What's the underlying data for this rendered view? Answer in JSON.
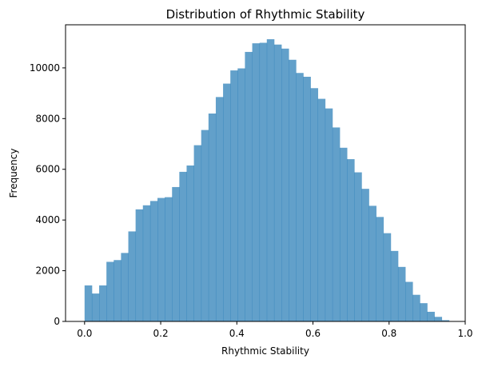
{
  "chart_data": {
    "type": "histogram",
    "title": "Distribution of Rhythmic Stability",
    "xlabel": "Rhythmic Stability",
    "ylabel": "Frequency",
    "xlim": [
      -0.05,
      1.0
    ],
    "ylim": [
      0,
      11700
    ],
    "x_ticks": [
      0.0,
      0.2,
      0.4,
      0.6,
      0.8,
      1.0
    ],
    "x_tick_labels": [
      "0.0",
      "0.2",
      "0.4",
      "0.6",
      "0.8",
      "1.0"
    ],
    "y_ticks": [
      0,
      2000,
      4000,
      6000,
      8000,
      10000
    ],
    "y_tick_labels": [
      "0",
      "2000",
      "4000",
      "6000",
      "8000",
      "10000"
    ],
    "bar_color": "#1f77b4",
    "bar_opacity": 0.7,
    "grid": false,
    "legend": false,
    "bin_start": 0.0,
    "bin_width": 0.01915,
    "values": [
      1420,
      1100,
      1420,
      2350,
      2420,
      2700,
      3550,
      4420,
      4580,
      4750,
      4870,
      4900,
      5300,
      5900,
      6150,
      6950,
      7550,
      8200,
      8850,
      9380,
      9900,
      9980,
      10630,
      10970,
      10990,
      11130,
      10920,
      10760,
      10320,
      9800,
      9650,
      9200,
      8780,
      8400,
      7650,
      6850,
      6400,
      5880,
      5230,
      4560,
      4120,
      3480,
      2780,
      2150,
      1560,
      1050,
      720,
      380,
      180,
      50
    ]
  }
}
